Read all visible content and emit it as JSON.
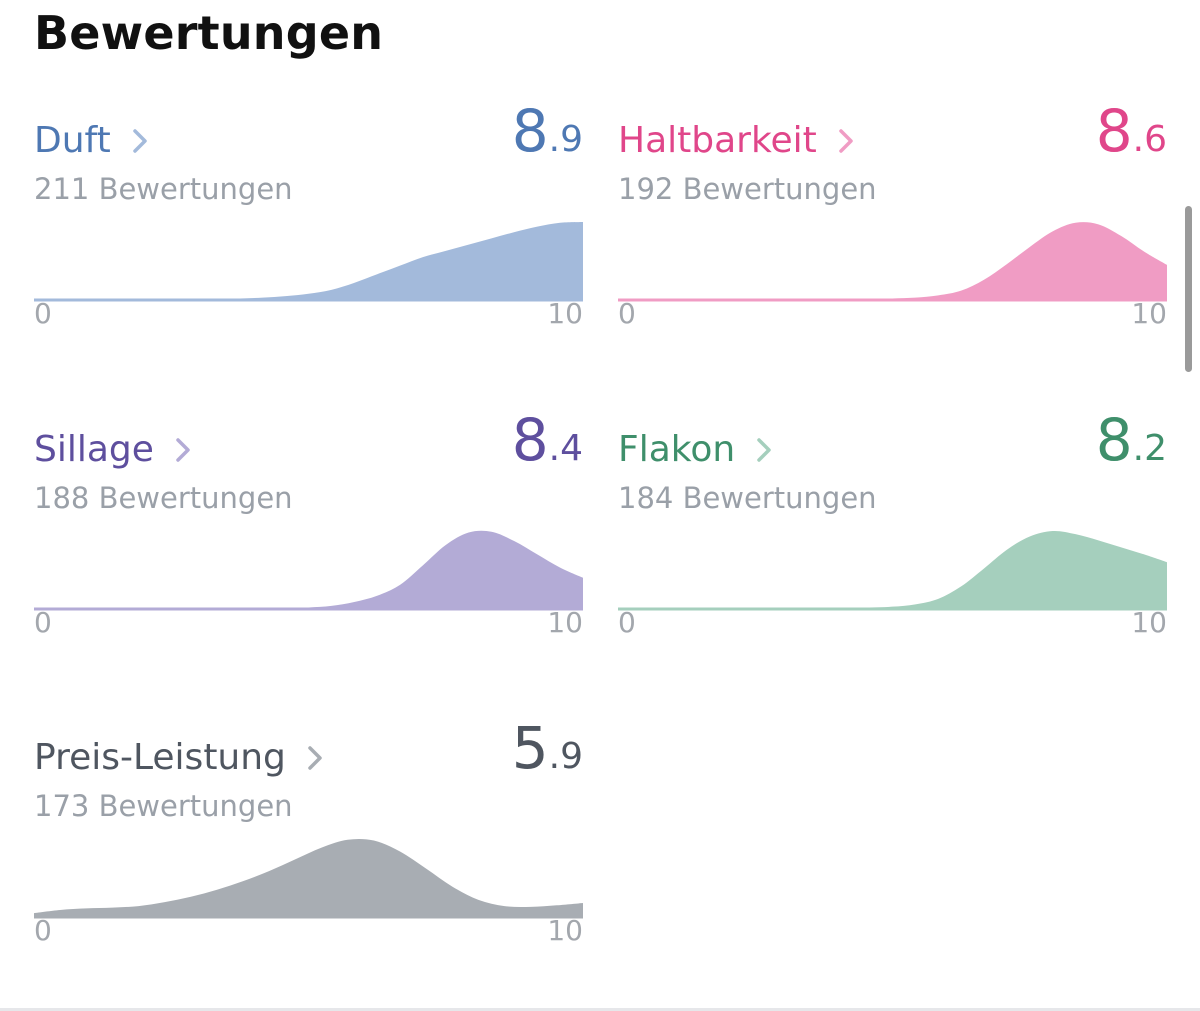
{
  "page": {
    "title": "Bewertungen"
  },
  "cards": [
    {
      "id": "duft",
      "title": "Duft",
      "score_int": "8",
      "score_dec": ".9",
      "count": "211 Bewertungen",
      "axis_min": "0",
      "axis_max": "10",
      "color": "#4e78b3",
      "fill": "#a3badb",
      "distribution": [
        0,
        0,
        0,
        0,
        0,
        0,
        0,
        0,
        0.01,
        0.02,
        0.03,
        0.05,
        0.08,
        0.13,
        0.22,
        0.33,
        0.44,
        0.55,
        0.63,
        0.71,
        0.79,
        0.87,
        0.94,
        0.99,
        1.0
      ]
    },
    {
      "id": "haltbarkeit",
      "title": "Haltbarkeit",
      "score_int": "8",
      "score_dec": ".6",
      "count": "192 Bewertungen",
      "axis_min": "0",
      "axis_max": "10",
      "color": "#e0468a",
      "fill": "#f09cc4",
      "distribution": [
        0,
        0,
        0,
        0,
        0,
        0,
        0,
        0,
        0,
        0,
        0,
        0.01,
        0.02,
        0.03,
        0.06,
        0.12,
        0.26,
        0.46,
        0.68,
        0.88,
        0.99,
        0.97,
        0.82,
        0.62,
        0.45
      ]
    },
    {
      "id": "sillage",
      "title": "Sillage",
      "score_int": "8",
      "score_dec": ".4",
      "count": "188 Bewertungen",
      "axis_min": "0",
      "axis_max": "10",
      "color": "#5e4f9e",
      "fill": "#b3abd6",
      "distribution": [
        0,
        0,
        0,
        0,
        0,
        0,
        0,
        0,
        0,
        0,
        0,
        0.01,
        0.02,
        0.04,
        0.09,
        0.17,
        0.31,
        0.56,
        0.82,
        0.98,
        0.99,
        0.87,
        0.7,
        0.53,
        0.4
      ]
    },
    {
      "id": "flakon",
      "title": "Flakon",
      "score_int": "8",
      "score_dec": ".2",
      "count": "184 Bewertungen",
      "axis_min": "0",
      "axis_max": "10",
      "color": "#3f8f6b",
      "fill": "#a5cfbd",
      "distribution": [
        0,
        0,
        0,
        0,
        0,
        0,
        0,
        0,
        0,
        0.01,
        0.01,
        0.02,
        0.03,
        0.06,
        0.13,
        0.29,
        0.52,
        0.76,
        0.93,
        1.0,
        0.96,
        0.88,
        0.79,
        0.7,
        0.6
      ]
    },
    {
      "id": "preis-leistung",
      "title": "Preis-Leistung",
      "score_int": "5",
      "score_dec": ".9",
      "count": "173 Bewertungen",
      "axis_min": "0",
      "axis_max": "10",
      "color": "#4f5660",
      "fill": "#a8adb3",
      "distribution": [
        0.05,
        0.09,
        0.11,
        0.12,
        0.14,
        0.19,
        0.26,
        0.35,
        0.46,
        0.59,
        0.74,
        0.89,
        0.99,
        0.98,
        0.84,
        0.62,
        0.39,
        0.22,
        0.14,
        0.13,
        0.15,
        0.18
      ]
    }
  ]
}
